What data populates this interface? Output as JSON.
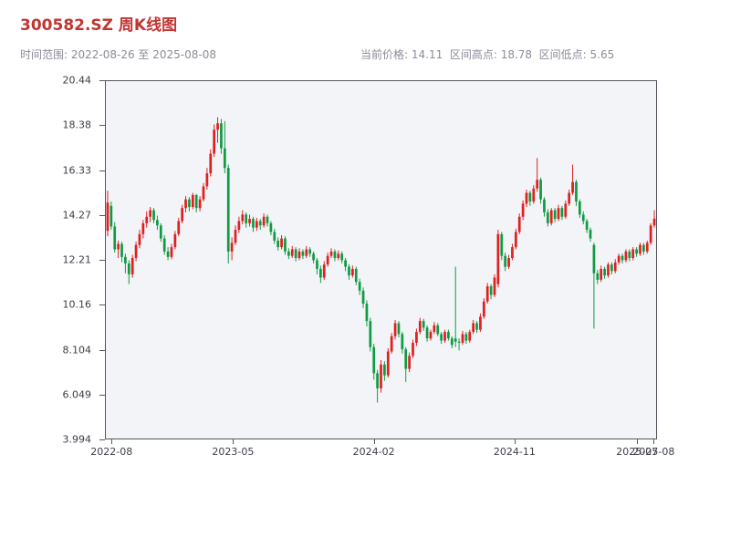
{
  "header": {
    "title": "300582.SZ 周K线图",
    "date_range_label": "时间范围: 2022-08-26 至 2025-08-08",
    "price_stats_label": "当前价格: 14.11  区间高点: 18.78  区间低点: 5.65"
  },
  "colors": {
    "up": "#e02020",
    "down": "#0f9b42",
    "title": "#c23531",
    "subtitle_text": "#8b8b99",
    "axis_text": "#3c3c48",
    "plot_bg": "#f3f4f8"
  },
  "chart_data": {
    "type": "candlestick",
    "title": "300582.SZ 周K线图",
    "symbol": "300582.SZ",
    "interval": "weekly",
    "date_start": "2022-08-26",
    "date_end": "2025-08-08",
    "current_price": 14.11,
    "range_high": 18.78,
    "range_low": 5.65,
    "grid": false,
    "y_axis": {
      "min": 3.994,
      "max": 20.44,
      "ticks": [
        "20.44",
        "18.38",
        "16.33",
        "14.27",
        "12.21",
        "10.16",
        "8.104",
        "6.049",
        "3.994"
      ]
    },
    "x_axis": {
      "ticks": [
        {
          "label": "2022-08",
          "pos": 0.012
        },
        {
          "label": "2023-05",
          "pos": 0.232
        },
        {
          "label": "2024-02",
          "pos": 0.487
        },
        {
          "label": "2024-11",
          "pos": 0.742
        },
        {
          "label": "2025-07",
          "pos": 0.964
        },
        {
          "label": "2025-08",
          "pos": 0.994
        }
      ]
    },
    "ohlc_format": [
      "open",
      "high",
      "low",
      "close"
    ],
    "ohlc": [
      [
        13.55,
        15.4,
        13.3,
        14.85
      ],
      [
        14.7,
        14.9,
        13.6,
        13.75
      ],
      [
        13.75,
        13.95,
        12.55,
        12.7
      ],
      [
        12.7,
        13.1,
        12.3,
        12.95
      ],
      [
        12.95,
        13.05,
        12.1,
        12.35
      ],
      [
        12.35,
        12.5,
        11.6,
        12.05
      ],
      [
        12.05,
        12.2,
        11.1,
        11.55
      ],
      [
        11.55,
        12.45,
        11.4,
        12.3
      ],
      [
        12.3,
        13.05,
        12.15,
        12.9
      ],
      [
        12.9,
        13.6,
        12.75,
        13.4
      ],
      [
        13.4,
        14.05,
        13.2,
        13.9
      ],
      [
        13.9,
        14.45,
        13.7,
        14.2
      ],
      [
        14.2,
        14.65,
        13.95,
        14.5
      ],
      [
        14.5,
        14.6,
        13.9,
        14.05
      ],
      [
        14.05,
        14.25,
        13.6,
        13.8
      ],
      [
        13.8,
        13.9,
        13.05,
        13.2
      ],
      [
        13.2,
        13.35,
        12.45,
        12.6
      ],
      [
        12.6,
        12.8,
        12.2,
        12.35
      ],
      [
        12.35,
        12.95,
        12.25,
        12.8
      ],
      [
        12.8,
        13.55,
        12.7,
        13.4
      ],
      [
        13.4,
        14.15,
        13.3,
        14.0
      ],
      [
        14.0,
        14.75,
        13.9,
        14.6
      ],
      [
        14.6,
        15.15,
        14.4,
        15.0
      ],
      [
        15.0,
        15.1,
        14.45,
        14.65
      ],
      [
        14.65,
        15.3,
        14.55,
        15.2
      ],
      [
        15.2,
        15.25,
        14.4,
        14.6
      ],
      [
        14.6,
        15.15,
        14.45,
        15.0
      ],
      [
        15.0,
        15.75,
        14.9,
        15.6
      ],
      [
        15.6,
        16.45,
        15.45,
        16.2
      ],
      [
        16.2,
        17.3,
        16.05,
        17.1
      ],
      [
        17.1,
        18.45,
        16.95,
        18.2
      ],
      [
        18.2,
        18.78,
        17.6,
        18.5
      ],
      [
        18.5,
        18.7,
        17.1,
        17.35
      ],
      [
        17.35,
        18.6,
        16.2,
        16.45
      ],
      [
        16.45,
        16.6,
        12.05,
        12.6
      ],
      [
        12.6,
        13.25,
        12.2,
        13.0
      ],
      [
        13.0,
        13.8,
        12.9,
        13.6
      ],
      [
        13.6,
        14.2,
        13.45,
        14.0
      ],
      [
        14.0,
        14.5,
        13.85,
        14.3
      ],
      [
        14.3,
        14.4,
        13.7,
        13.9
      ],
      [
        13.9,
        14.3,
        13.75,
        14.1
      ],
      [
        14.1,
        14.2,
        13.5,
        13.7
      ],
      [
        13.7,
        14.15,
        13.55,
        14.0
      ],
      [
        14.0,
        14.1,
        13.6,
        13.8
      ],
      [
        13.8,
        14.35,
        13.7,
        14.2
      ],
      [
        14.2,
        14.3,
        13.75,
        13.9
      ],
      [
        13.9,
        14.0,
        13.35,
        13.5
      ],
      [
        13.5,
        13.65,
        12.95,
        13.1
      ],
      [
        13.1,
        13.25,
        12.65,
        12.8
      ],
      [
        12.8,
        13.35,
        12.7,
        13.2
      ],
      [
        13.2,
        13.3,
        12.45,
        12.6
      ],
      [
        12.6,
        12.75,
        12.25,
        12.4
      ],
      [
        12.4,
        12.85,
        12.3,
        12.7
      ],
      [
        12.7,
        12.8,
        12.15,
        12.3
      ],
      [
        12.3,
        12.75,
        12.2,
        12.6
      ],
      [
        12.6,
        12.7,
        12.25,
        12.4
      ],
      [
        12.4,
        12.85,
        12.3,
        12.7
      ],
      [
        12.7,
        12.8,
        12.35,
        12.5
      ],
      [
        12.5,
        12.6,
        12.05,
        12.2
      ],
      [
        12.2,
        12.3,
        11.55,
        11.8
      ],
      [
        11.8,
        11.95,
        11.15,
        11.4
      ],
      [
        11.4,
        12.15,
        11.3,
        12.0
      ],
      [
        12.0,
        12.55,
        11.9,
        12.4
      ],
      [
        12.4,
        12.75,
        12.3,
        12.6
      ],
      [
        12.6,
        12.7,
        12.15,
        12.3
      ],
      [
        12.3,
        12.65,
        12.2,
        12.5
      ],
      [
        12.5,
        12.6,
        12.05,
        12.2
      ],
      [
        12.2,
        12.3,
        11.7,
        11.9
      ],
      [
        11.9,
        12.0,
        11.3,
        11.5
      ],
      [
        11.5,
        11.95,
        11.4,
        11.8
      ],
      [
        11.8,
        11.9,
        11.05,
        11.2
      ],
      [
        11.2,
        11.35,
        10.6,
        10.8
      ],
      [
        10.8,
        10.95,
        10.0,
        10.2
      ],
      [
        10.2,
        10.35,
        9.15,
        9.4
      ],
      [
        9.4,
        9.55,
        8.0,
        8.2
      ],
      [
        8.2,
        8.35,
        6.7,
        7.0
      ],
      [
        7.0,
        7.15,
        5.65,
        6.3
      ],
      [
        6.3,
        7.6,
        6.1,
        7.4
      ],
      [
        7.4,
        7.55,
        6.65,
        6.9
      ],
      [
        6.9,
        8.15,
        6.8,
        8.0
      ],
      [
        8.0,
        8.85,
        7.9,
        8.7
      ],
      [
        8.7,
        9.45,
        8.55,
        9.3
      ],
      [
        9.3,
        9.4,
        8.65,
        8.8
      ],
      [
        8.8,
        8.9,
        7.9,
        8.1
      ],
      [
        8.1,
        8.2,
        6.6,
        7.2
      ],
      [
        7.2,
        7.95,
        7.05,
        7.8
      ],
      [
        7.8,
        8.55,
        7.7,
        8.4
      ],
      [
        8.4,
        9.05,
        8.25,
        8.9
      ],
      [
        8.9,
        9.55,
        8.8,
        9.4
      ],
      [
        9.4,
        9.5,
        8.95,
        9.1
      ],
      [
        9.1,
        9.2,
        8.45,
        8.6
      ],
      [
        8.6,
        9.0,
        8.5,
        8.9
      ],
      [
        8.9,
        9.35,
        8.8,
        9.2
      ],
      [
        9.2,
        9.3,
        8.7,
        8.8
      ],
      [
        8.8,
        8.9,
        8.35,
        8.5
      ],
      [
        8.5,
        9.0,
        8.4,
        8.9
      ],
      [
        8.9,
        9.0,
        8.5,
        8.6
      ],
      [
        8.6,
        8.7,
        8.15,
        8.3
      ],
      [
        8.6,
        11.9,
        8.2,
        8.45
      ],
      [
        8.45,
        8.6,
        8.05,
        8.4
      ],
      [
        8.4,
        8.95,
        8.3,
        8.8
      ],
      [
        8.8,
        8.9,
        8.35,
        8.5
      ],
      [
        8.5,
        9.0,
        8.4,
        8.9
      ],
      [
        8.9,
        9.45,
        8.8,
        9.3
      ],
      [
        9.3,
        9.4,
        8.85,
        9.0
      ],
      [
        9.0,
        9.75,
        8.9,
        9.6
      ],
      [
        9.6,
        10.45,
        9.5,
        10.3
      ],
      [
        10.3,
        11.15,
        10.2,
        11.0
      ],
      [
        11.0,
        11.1,
        10.4,
        10.6
      ],
      [
        10.6,
        11.55,
        10.5,
        11.4
      ],
      [
        11.1,
        13.6,
        10.95,
        13.4
      ],
      [
        13.4,
        13.5,
        12.2,
        12.4
      ],
      [
        12.4,
        12.55,
        11.7,
        11.9
      ],
      [
        11.9,
        12.45,
        11.8,
        12.3
      ],
      [
        12.3,
        12.95,
        12.2,
        12.8
      ],
      [
        12.8,
        13.65,
        12.7,
        13.5
      ],
      [
        13.5,
        14.35,
        13.4,
        14.2
      ],
      [
        14.2,
        14.95,
        14.05,
        14.8
      ],
      [
        14.8,
        15.45,
        14.65,
        15.3
      ],
      [
        15.3,
        15.4,
        14.7,
        14.9
      ],
      [
        14.9,
        15.65,
        14.8,
        15.5
      ],
      [
        15.5,
        16.9,
        15.35,
        15.9
      ],
      [
        15.9,
        16.0,
        14.8,
        15.0
      ],
      [
        15.0,
        15.1,
        14.2,
        14.4
      ],
      [
        14.4,
        14.55,
        13.75,
        13.9
      ],
      [
        13.9,
        14.6,
        13.8,
        14.5
      ],
      [
        14.5,
        14.6,
        13.95,
        14.1
      ],
      [
        14.1,
        14.75,
        14.0,
        14.6
      ],
      [
        14.6,
        14.7,
        14.05,
        14.2
      ],
      [
        14.2,
        14.95,
        14.1,
        14.8
      ],
      [
        14.8,
        15.45,
        14.7,
        15.3
      ],
      [
        15.3,
        16.6,
        15.2,
        15.8
      ],
      [
        15.8,
        15.9,
        14.7,
        14.9
      ],
      [
        14.9,
        15.0,
        14.15,
        14.3
      ],
      [
        14.3,
        14.45,
        13.85,
        14.0
      ],
      [
        14.0,
        14.1,
        13.45,
        13.6
      ],
      [
        13.6,
        13.7,
        13.05,
        13.2
      ],
      [
        12.9,
        13.0,
        9.05,
        11.6
      ],
      [
        11.6,
        11.75,
        11.1,
        11.3
      ],
      [
        11.3,
        11.95,
        11.2,
        11.8
      ],
      [
        11.8,
        11.9,
        11.35,
        11.5
      ],
      [
        11.5,
        12.1,
        11.4,
        12.0
      ],
      [
        12.0,
        12.1,
        11.55,
        11.7
      ],
      [
        11.7,
        12.25,
        11.6,
        12.1
      ],
      [
        12.1,
        12.5,
        12.0,
        12.4
      ],
      [
        12.4,
        12.5,
        12.05,
        12.2
      ],
      [
        12.2,
        12.7,
        12.1,
        12.6
      ],
      [
        12.6,
        12.7,
        12.15,
        12.3
      ],
      [
        12.3,
        12.8,
        12.2,
        12.7
      ],
      [
        12.7,
        12.8,
        12.35,
        12.5
      ],
      [
        12.5,
        13.0,
        12.4,
        12.9
      ],
      [
        12.9,
        13.0,
        12.45,
        12.6
      ],
      [
        12.6,
        13.1,
        12.5,
        13.0
      ],
      [
        13.0,
        13.9,
        12.9,
        13.8
      ],
      [
        13.8,
        14.5,
        13.7,
        14.11
      ]
    ]
  }
}
